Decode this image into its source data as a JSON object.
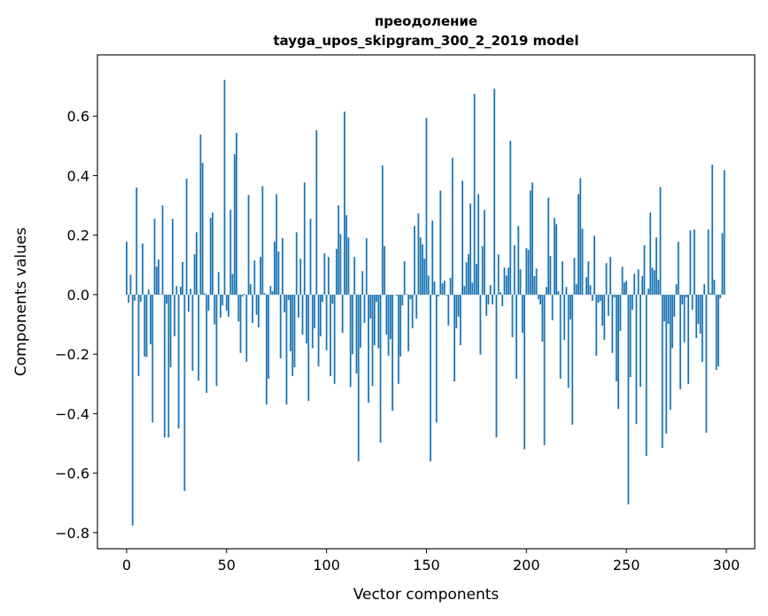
{
  "chart_data": {
    "type": "bar",
    "title": "преодоление",
    "subtitle": "tayga_upos_skipgram_300_2_2019 model",
    "xlabel": "Vector components",
    "ylabel": "Components values",
    "xlim": [
      -14.6,
      314.2
    ],
    "ylim": [
      -0.854,
      0.806
    ],
    "xticks": [
      0,
      50,
      100,
      150,
      200,
      250,
      300
    ],
    "xtick_labels": [
      "0",
      "50",
      "100",
      "150",
      "200",
      "250",
      "300"
    ],
    "yticks": [
      -0.8,
      -0.6,
      -0.4,
      -0.2,
      0.0,
      0.2,
      0.4,
      0.6
    ],
    "ytick_labels": [
      "−0.8",
      "−0.6",
      "−0.4",
      "−0.2",
      "0.0",
      "0.2",
      "0.4",
      "0.6"
    ],
    "grid": false,
    "color": "#1f77b4",
    "values": [
      0.178,
      -0.027,
      0.067,
      -0.776,
      -0.02,
      0.36,
      -0.274,
      -0.024,
      0.172,
      -0.208,
      -0.21,
      0.017,
      -0.167,
      -0.43,
      0.255,
      0.094,
      0.118,
      0.002,
      0.3,
      -0.48,
      -0.03,
      -0.48,
      -0.244,
      0.255,
      -0.14,
      0.029,
      -0.45,
      0.026,
      0.11,
      -0.66,
      0.39,
      -0.057,
      0.02,
      -0.256,
      0.136,
      0.21,
      -0.289,
      0.538,
      0.443,
      0.005,
      -0.33,
      -0.054,
      0.258,
      0.276,
      -0.1,
      -0.307,
      0.076,
      -0.077,
      -0.036,
      0.722,
      -0.054,
      -0.074,
      0.285,
      0.07,
      0.472,
      0.544,
      -0.09,
      -0.196,
      -0.006,
      0.003,
      -0.226,
      0.335,
      0.035,
      -0.095,
      0.115,
      -0.068,
      -0.11,
      0.127,
      0.365,
      0.005,
      -0.369,
      -0.283,
      0.029,
      0.011,
      0.178,
      0.338,
      0.145,
      -0.214,
      0.19,
      -0.06,
      -0.369,
      -0.018,
      -0.19,
      -0.274,
      -0.244,
      0.21,
      -0.077,
      0.121,
      -0.134,
      0.377,
      -0.164,
      -0.357,
      0.255,
      -0.18,
      -0.113,
      0.553,
      -0.241,
      -0.14,
      -0.024,
      0.139,
      -0.187,
      0.127,
      -0.274,
      -0.03,
      -0.3,
      0.154,
      0.3,
      0.204,
      -0.128,
      0.615,
      0.267,
      0.192,
      -0.31,
      -0.2,
      0.127,
      -0.265,
      -0.56,
      -0.178,
      0.079,
      -0.095,
      0.19,
      -0.363,
      -0.08,
      -0.307,
      -0.17,
      -0.024,
      -0.18,
      -0.497,
      0.434,
      0.163,
      -0.134,
      -0.205,
      -0.149,
      -0.39,
      0.0,
      -0.003,
      -0.3,
      -0.208,
      -0.036,
      0.112,
      0.002,
      -0.19,
      -0.015,
      -0.113,
      0.231,
      -0.08,
      0.273,
      0.192,
      0.169,
      0.121,
      0.594,
      0.064,
      -0.56,
      0.249,
      0.044,
      -0.43,
      -0.006,
      0.35,
      0.038,
      0.047,
      -0.003,
      -0.104,
      0.056,
      0.46,
      -0.292,
      -0.113,
      -0.074,
      -0.17,
      0.383,
      0.029,
      0.109,
      0.136,
      0.306,
      0.041,
      0.675,
      0.103,
      0.338,
      -0.202,
      0.163,
      0.285,
      -0.071,
      -0.033,
      0.032,
      -0.033,
      0.692,
      -0.48,
      0.136,
      0.008,
      -0.039,
      0.091,
      0.064,
      0.091,
      0.517,
      -0.143,
      0.166,
      -0.283,
      0.231,
      0.085,
      -0.128,
      -0.52,
      0.157,
      0.151,
      0.35,
      0.377,
      0.062,
      0.088,
      -0.015,
      -0.033,
      -0.158,
      -0.506,
      0.026,
      0.326,
      0.13,
      -0.086,
      0.258,
      0.237,
      0.011,
      -0.283,
      0.112,
      -0.152,
      0.026,
      -0.313,
      -0.083,
      -0.437,
      0.124,
      0.035,
      0.338,
      0.392,
      0.222,
      0.0,
      0.059,
      0.112,
      0.032,
      -0.021,
      0.198,
      -0.205,
      -0.027,
      -0.021,
      -0.104,
      -0.152,
      0.106,
      -0.071,
      0.127,
      -0.196,
      -0.009,
      -0.292,
      -0.384,
      -0.122,
      0.094,
      0.041,
      0.047,
      -0.705,
      -0.277,
      -0.051,
      0.07,
      -0.435,
      0.085,
      -0.31,
      0.062,
      0.166,
      -0.542,
      0.02,
      0.276,
      0.091,
      0.082,
      0.192,
      0.05,
      0.362,
      -0.515,
      -0.09,
      -0.467,
      -0.098,
      -0.387,
      -0.18,
      -0.074,
      0.035,
      0.178,
      -0.318,
      -0.033,
      -0.16,
      -0.009,
      -0.3,
      0.216,
      -0.051,
      0.219,
      -0.146,
      -0.098,
      -0.131,
      -0.226,
      0.035,
      -0.464,
      0.219,
      0.005,
      0.437,
      0.05,
      -0.253,
      -0.241,
      -0.012,
      0.207,
      0.419
    ]
  }
}
